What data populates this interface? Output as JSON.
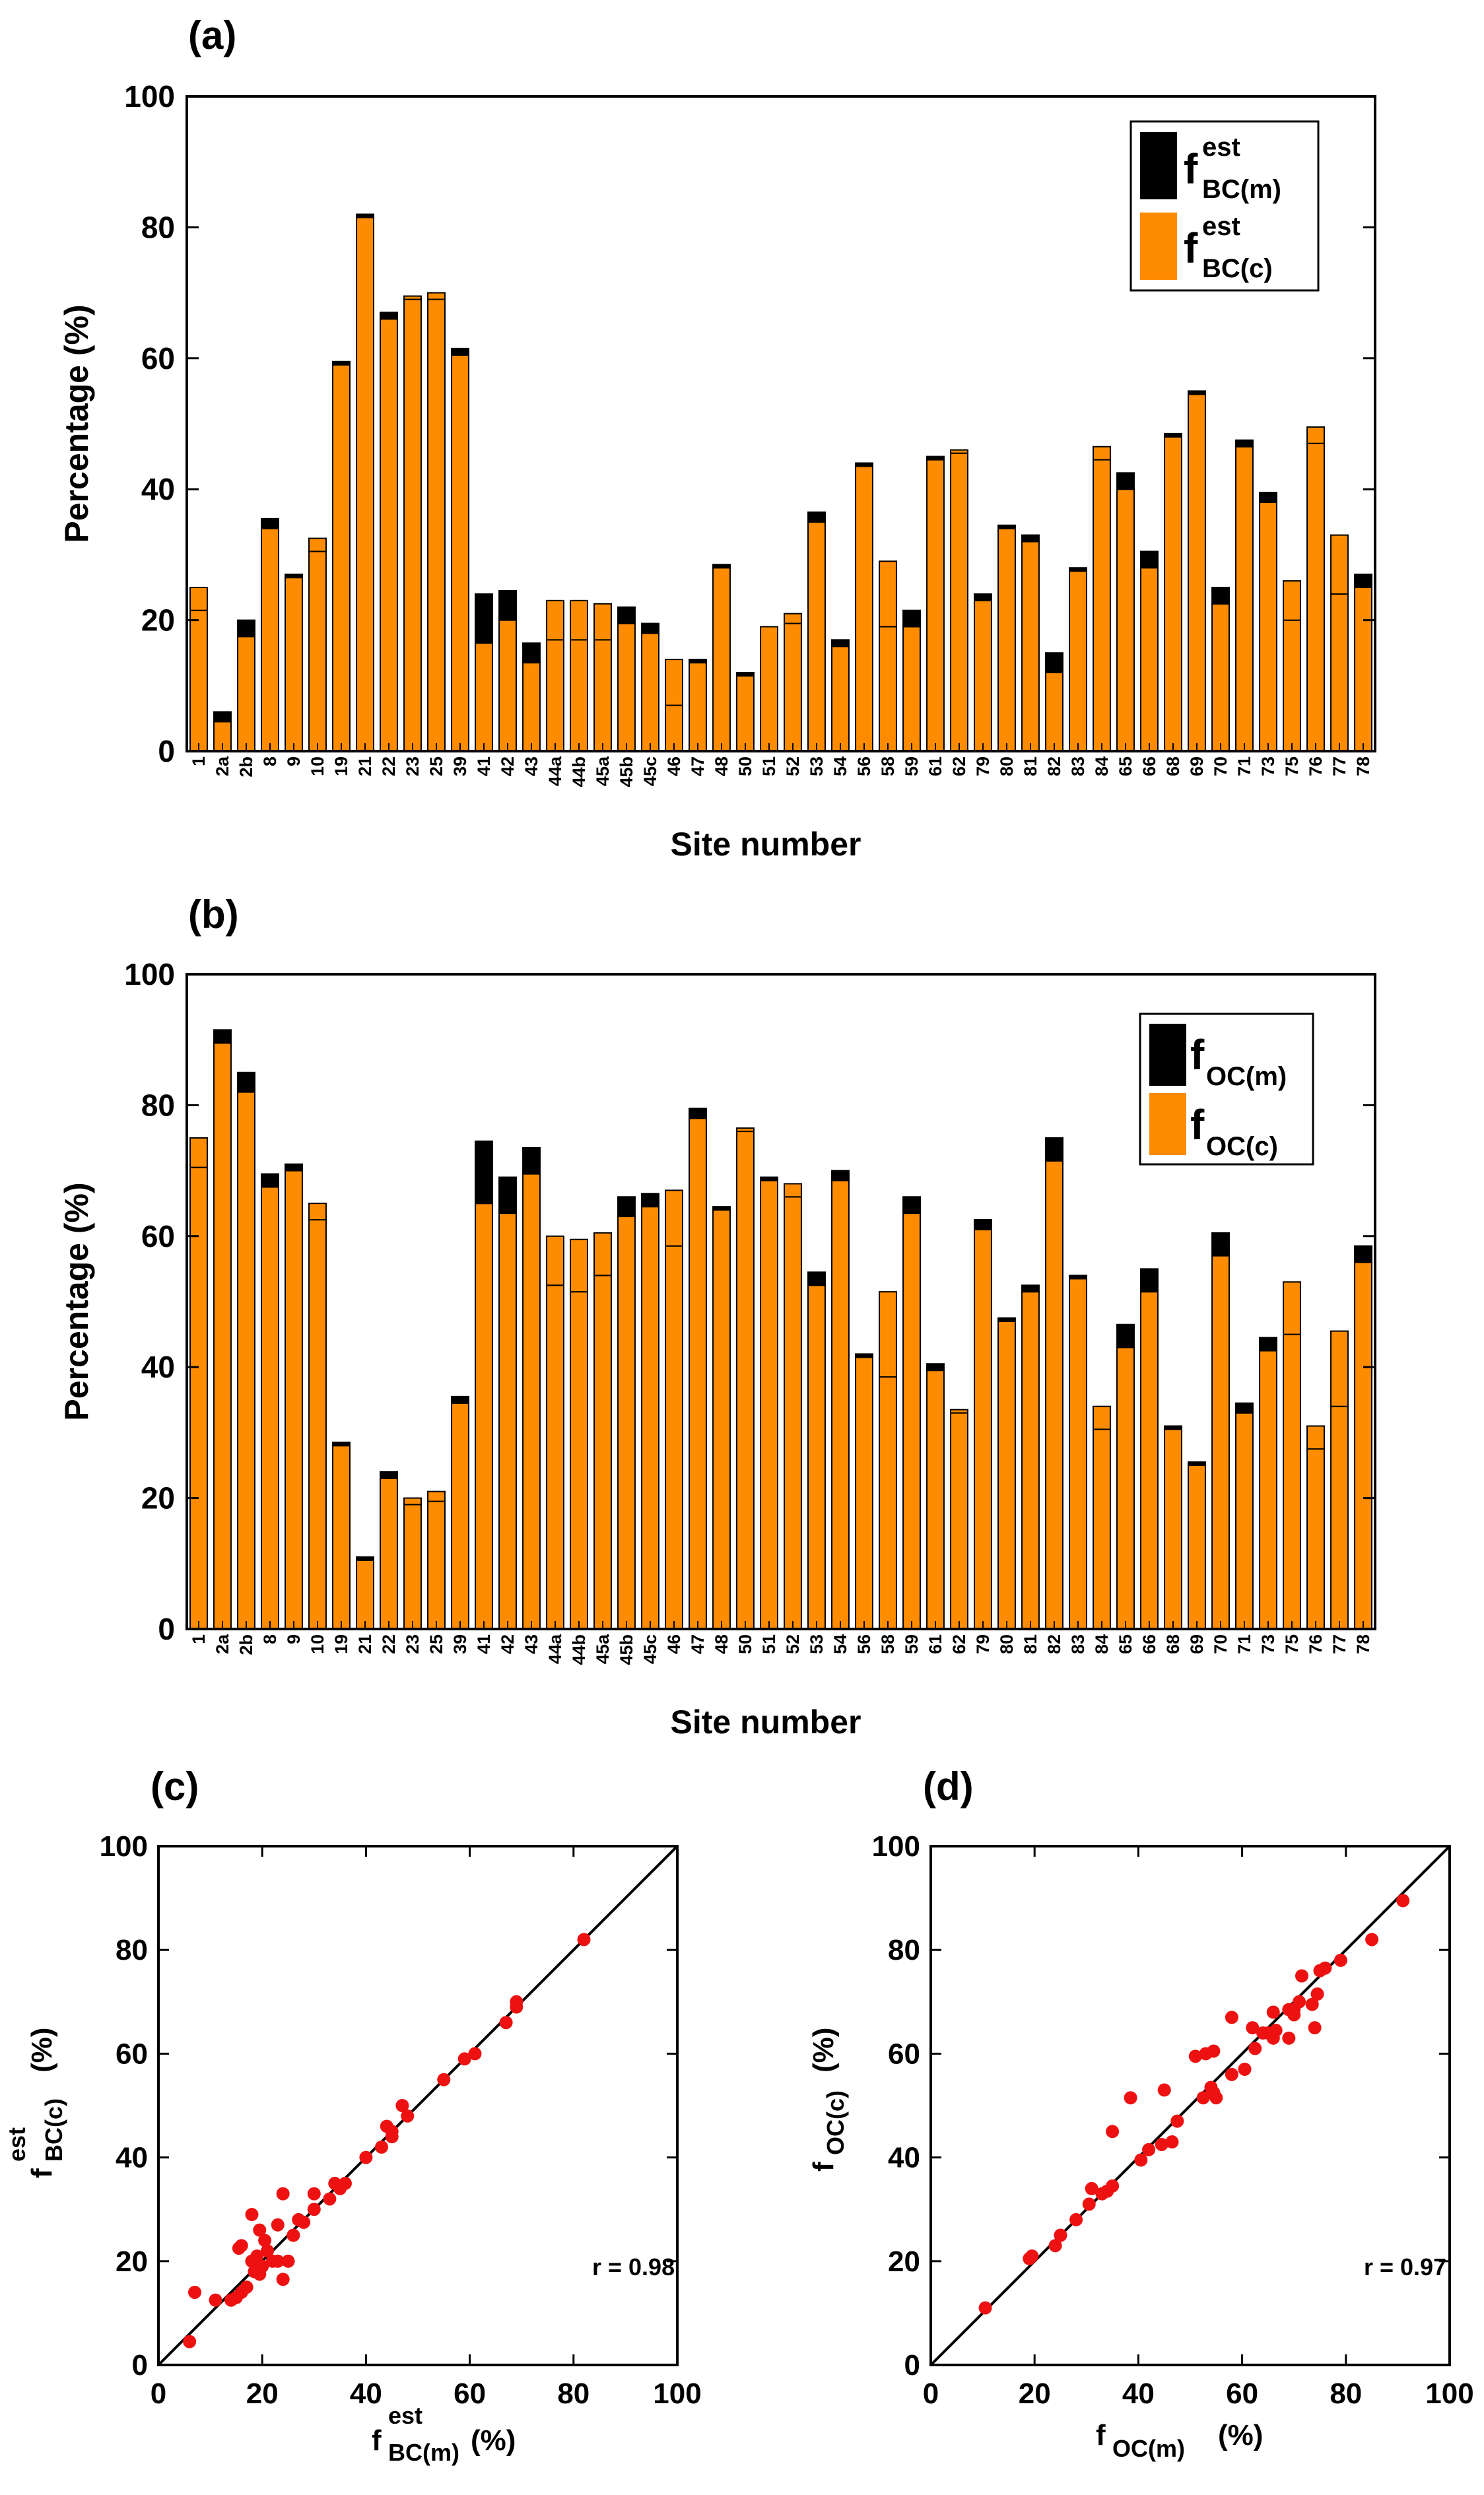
{
  "colors": {
    "measured": "#000000",
    "calculated": "#ff8c00",
    "point": "#ee1111",
    "frame": "#000000"
  },
  "panels": {
    "a": {
      "letter": "(a)"
    },
    "b": {
      "letter": "(b)"
    },
    "c": {
      "letter": "(c)"
    },
    "d": {
      "letter": "(d)"
    }
  },
  "chart_data": [
    {
      "id": "a",
      "type": "bar",
      "title": "(a)",
      "xlabel": "Site number",
      "ylabel": "Percentage (%)",
      "ylim": [
        0,
        100
      ],
      "yticks": [
        "0",
        "20",
        "40",
        "60",
        "80",
        "100"
      ],
      "legend": [
        {
          "f": "f",
          "sup": "est",
          "sub": "BC(m)"
        },
        {
          "f": "f",
          "sup": "est",
          "sub": "BC(c)"
        }
      ],
      "categories": [
        "1",
        "2a",
        "2b",
        "8",
        "9",
        "10",
        "19",
        "21",
        "22",
        "23",
        "25",
        "39",
        "41",
        "42",
        "43",
        "44a",
        "44b",
        "45a",
        "45b",
        "45c",
        "46",
        "47",
        "48",
        "50",
        "51",
        "52",
        "53",
        "54",
        "56",
        "58",
        "59",
        "61",
        "62",
        "79",
        "80",
        "81",
        "82",
        "83",
        "84",
        "65",
        "66",
        "68",
        "69",
        "70",
        "71",
        "73",
        "75",
        "76",
        "77",
        "78"
      ],
      "series": [
        {
          "name": "f est BC(m)",
          "values": [
            21.5,
            6,
            20,
            35.5,
            27,
            30.5,
            59.5,
            82,
            67,
            69,
            69,
            61.5,
            24,
            24.5,
            16.5,
            17,
            17,
            17,
            22,
            19.5,
            7,
            14,
            28.5,
            12,
            19,
            19.5,
            36.5,
            17,
            44,
            19,
            21.5,
            45,
            45.5,
            24,
            34.5,
            33,
            15,
            28,
            44.5,
            42.5,
            30.5,
            48.5,
            55,
            25,
            47.5,
            39.5,
            20,
            47,
            24,
            27
          ]
        },
        {
          "name": "f est BC(c)",
          "values": [
            25,
            4.5,
            17.5,
            34,
            26.5,
            32.5,
            59,
            81.5,
            66,
            69.5,
            70,
            60.5,
            16.5,
            20,
            13.5,
            23,
            23,
            22.5,
            19.5,
            18,
            14,
            13.5,
            28,
            11.5,
            19,
            21,
            35,
            16,
            43.5,
            29,
            19,
            44.5,
            46,
            23,
            34,
            32,
            12,
            27.5,
            46.5,
            40,
            28,
            48,
            54.5,
            22.5,
            46.5,
            38,
            26,
            49.5,
            33,
            25
          ]
        }
      ]
    },
    {
      "id": "b",
      "type": "bar",
      "title": "(b)",
      "xlabel": "Site number",
      "ylabel": "Percentage (%)",
      "ylim": [
        0,
        100
      ],
      "yticks": [
        "0",
        "20",
        "40",
        "60",
        "80",
        "100"
      ],
      "legend": [
        {
          "f": "f",
          "sup": "",
          "sub": "OC(m)"
        },
        {
          "f": "f",
          "sup": "",
          "sub": "OC(c)"
        }
      ],
      "categories": [
        "1",
        "2a",
        "2b",
        "8",
        "9",
        "10",
        "19",
        "21",
        "22",
        "23",
        "25",
        "39",
        "41",
        "42",
        "43",
        "44a",
        "44b",
        "45a",
        "45b",
        "45c",
        "46",
        "47",
        "48",
        "50",
        "51",
        "52",
        "53",
        "54",
        "56",
        "58",
        "59",
        "61",
        "62",
        "79",
        "80",
        "81",
        "82",
        "83",
        "84",
        "65",
        "66",
        "68",
        "69",
        "70",
        "71",
        "73",
        "75",
        "76",
        "77",
        "78"
      ],
      "series": [
        {
          "name": "f OC(m)",
          "values": [
            70.5,
            91.5,
            85,
            69.5,
            71,
            62.5,
            28.5,
            11,
            24,
            19,
            19.5,
            35.5,
            74.5,
            69,
            73.5,
            52.5,
            51.5,
            54,
            66,
            66.5,
            58.5,
            79.5,
            64.5,
            76,
            69,
            66,
            54.5,
            70,
            42,
            38.5,
            66,
            40.5,
            33,
            62.5,
            47.5,
            52.5,
            75,
            54,
            30.5,
            46.5,
            55,
            31,
            25.5,
            60.5,
            34.5,
            44.5,
            45,
            27.5,
            34,
            58.5
          ]
        },
        {
          "name": "f OC(c)",
          "values": [
            75,
            89.5,
            82,
            67.5,
            70,
            65,
            28,
            10.5,
            23,
            20,
            21,
            34.5,
            65,
            63.5,
            69.5,
            60,
            59.5,
            60.5,
            63,
            64.5,
            67,
            78,
            64,
            76.5,
            68.5,
            68,
            52.5,
            68.5,
            41.5,
            51.5,
            63.5,
            39.5,
            33.5,
            61,
            47,
            51.5,
            71.5,
            53.5,
            34,
            43,
            51.5,
            30.5,
            25,
            57,
            33,
            42.5,
            53,
            31,
            45.5,
            56
          ]
        }
      ]
    },
    {
      "id": "c",
      "type": "scatter",
      "title": "(c)",
      "xlabel": {
        "f": "f",
        "sup": "est",
        "sub": "BC(m)",
        "unit": "(%)"
      },
      "ylabel": {
        "f": "f",
        "sup": "est",
        "sub": "BC(c)",
        "unit": "(%)"
      },
      "xlim": [
        0,
        100
      ],
      "ylim": [
        0,
        100
      ],
      "ticks": [
        "0",
        "20",
        "40",
        "60",
        "80",
        "100"
      ],
      "annotation": "r = 0.98",
      "reference_line": "1:1",
      "points": [
        [
          6,
          4.5
        ],
        [
          7,
          14
        ],
        [
          11,
          12.5
        ],
        [
          14,
          12.5
        ],
        [
          15,
          13
        ],
        [
          15.5,
          22.5
        ],
        [
          16,
          23
        ],
        [
          16,
          14
        ],
        [
          17,
          15
        ],
        [
          18,
          29
        ],
        [
          18,
          20
        ],
        [
          18.5,
          18
        ],
        [
          19,
          21
        ],
        [
          19.5,
          26
        ],
        [
          19.5,
          17.5
        ],
        [
          20,
          19
        ],
        [
          20.5,
          24
        ],
        [
          21,
          22
        ],
        [
          22,
          20
        ],
        [
          23,
          20
        ],
        [
          23,
          27
        ],
        [
          24,
          33
        ],
        [
          24,
          16.5
        ],
        [
          25,
          20
        ],
        [
          26,
          25
        ],
        [
          27,
          28
        ],
        [
          28,
          27.5
        ],
        [
          30,
          30
        ],
        [
          30,
          33
        ],
        [
          33,
          32
        ],
        [
          34,
          35
        ],
        [
          35,
          34
        ],
        [
          36,
          35
        ],
        [
          40,
          40
        ],
        [
          43,
          42
        ],
        [
          44,
          46
        ],
        [
          45,
          44
        ],
        [
          45,
          45
        ],
        [
          47,
          50
        ],
        [
          48,
          48
        ],
        [
          55,
          55
        ],
        [
          59,
          59
        ],
        [
          61,
          60
        ],
        [
          67,
          66
        ],
        [
          69,
          69
        ],
        [
          69,
          70
        ],
        [
          82,
          82
        ]
      ]
    },
    {
      "id": "d",
      "type": "scatter",
      "title": "(d)",
      "xlabel": {
        "f": "f",
        "sup": "",
        "sub": "OC(m)",
        "unit": "(%)"
      },
      "ylabel": {
        "f": "f",
        "sup": "",
        "sub": "OC(c)",
        "unit": "(%)"
      },
      "xlim": [
        0,
        100
      ],
      "ylim": [
        0,
        100
      ],
      "ticks": [
        "0",
        "20",
        "40",
        "60",
        "80",
        "100"
      ],
      "annotation": "r = 0.97",
      "reference_line": "1:1",
      "points": [
        [
          10.5,
          11
        ],
        [
          19,
          20.5
        ],
        [
          19.5,
          21
        ],
        [
          24,
          23
        ],
        [
          25,
          25
        ],
        [
          28,
          28
        ],
        [
          30.5,
          31
        ],
        [
          31,
          34
        ],
        [
          33,
          33
        ],
        [
          34,
          33.5
        ],
        [
          35,
          34.5
        ],
        [
          35,
          45
        ],
        [
          38.5,
          51.5
        ],
        [
          40.5,
          39.5
        ],
        [
          42,
          41.5
        ],
        [
          44.5,
          42.5
        ],
        [
          45,
          53
        ],
        [
          46.5,
          43
        ],
        [
          47.5,
          47
        ],
        [
          51,
          59.5
        ],
        [
          52.5,
          51.5
        ],
        [
          53,
          60
        ],
        [
          54,
          53.5
        ],
        [
          54.5,
          52.5
        ],
        [
          54.5,
          60.5
        ],
        [
          55,
          51.5
        ],
        [
          58,
          67
        ],
        [
          58,
          56
        ],
        [
          60.5,
          57
        ],
        [
          62,
          65
        ],
        [
          62.5,
          61
        ],
        [
          64,
          64
        ],
        [
          65,
          64
        ],
        [
          66,
          63
        ],
        [
          66,
          68
        ],
        [
          66.5,
          64.5
        ],
        [
          69,
          68.5
        ],
        [
          69,
          63
        ],
        [
          70,
          68.5
        ],
        [
          70,
          67.5
        ],
        [
          71,
          70
        ],
        [
          71.5,
          75
        ],
        [
          73.5,
          69.5
        ],
        [
          74,
          65
        ],
        [
          74.5,
          71.5
        ],
        [
          75,
          76
        ],
        [
          76,
          76.5
        ],
        [
          79,
          78
        ],
        [
          85,
          82
        ],
        [
          91,
          89.5
        ]
      ]
    }
  ]
}
